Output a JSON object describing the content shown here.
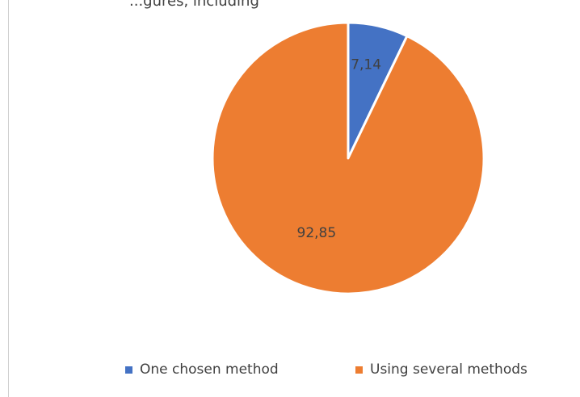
{
  "header": {
    "partial_text": "...gures, including"
  },
  "chart_data": {
    "type": "pie",
    "title": "",
    "labels": [
      "One chosen method",
      "Using several methods"
    ],
    "values": [
      7.14,
      92.85
    ],
    "data_labels": [
      "7,14",
      "92,85"
    ],
    "colors": [
      "#4472c4",
      "#ed7d31"
    ],
    "start_angle_deg": 0,
    "direction": "clockwise",
    "legend_position": "bottom"
  },
  "legend": {
    "items": [
      {
        "label": "One chosen method",
        "color": "#4472c4"
      },
      {
        "label": "Using several methods",
        "color": "#ed7d31"
      }
    ]
  }
}
